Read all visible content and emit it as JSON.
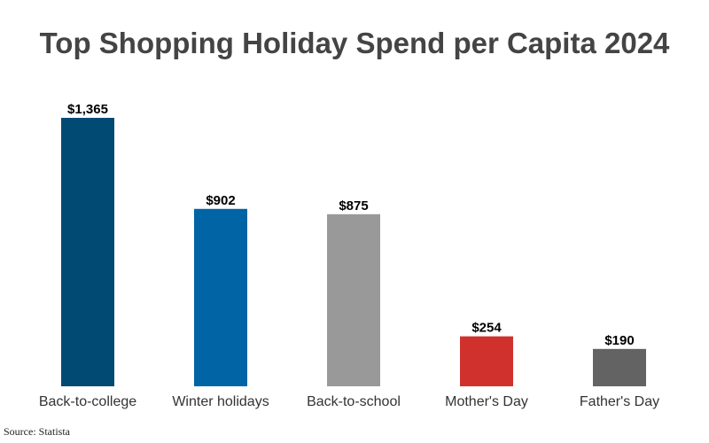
{
  "chart_data": {
    "type": "bar",
    "title": "Top Shopping Holiday Spend per Capita 2024",
    "categories": [
      "Back-to-college",
      "Winter holidays",
      "Back-to-school",
      "Mother's Day",
      "Father's Day"
    ],
    "values": [
      1365,
      902,
      875,
      254,
      190
    ],
    "value_labels": [
      "$1,365",
      "$902",
      "$875",
      "$254",
      "$190"
    ],
    "colors": [
      "#004a73",
      "#0064a5",
      "#999999",
      "#d0312d",
      "#636363"
    ],
    "xlabel": "",
    "ylabel": "",
    "ylim": [
      0,
      1365
    ],
    "grid": false,
    "legend": "none",
    "y_axis_visible": false
  },
  "source": "Source: Statista"
}
